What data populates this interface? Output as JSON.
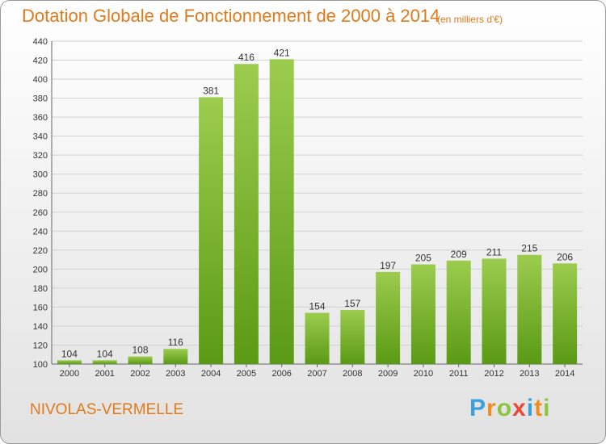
{
  "header": {
    "title": "Dotation Globale de Fonctionnement de 2000 à 2014",
    "unit": "(en milliers d'€)"
  },
  "footer": {
    "commune": "NIVOLAS-VERMELLE",
    "logo": "Proxiti"
  },
  "colors": {
    "title": "#e07a1a",
    "bar_light": "#9ccc4e",
    "bar_dark": "#5a9a14",
    "grid": "#d2d2d2"
  },
  "chart_data": {
    "type": "bar",
    "categories": [
      "2000",
      "2001",
      "2002",
      "2003",
      "2004",
      "2005",
      "2006",
      "2007",
      "2008",
      "2009",
      "2010",
      "2011",
      "2012",
      "2013",
      "2014"
    ],
    "values": [
      104,
      104,
      108,
      116,
      381,
      416,
      421,
      154,
      157,
      197,
      205,
      209,
      211,
      215,
      206
    ],
    "title": "Dotation Globale de Fonctionnement de 2000 à 2014",
    "xlabel": "",
    "ylabel": "",
    "ylim": [
      100,
      440
    ],
    "yticks": [
      100,
      120,
      140,
      160,
      180,
      200,
      220,
      240,
      260,
      280,
      300,
      320,
      340,
      360,
      380,
      400,
      420,
      440
    ],
    "grid": true,
    "legend": "none"
  }
}
